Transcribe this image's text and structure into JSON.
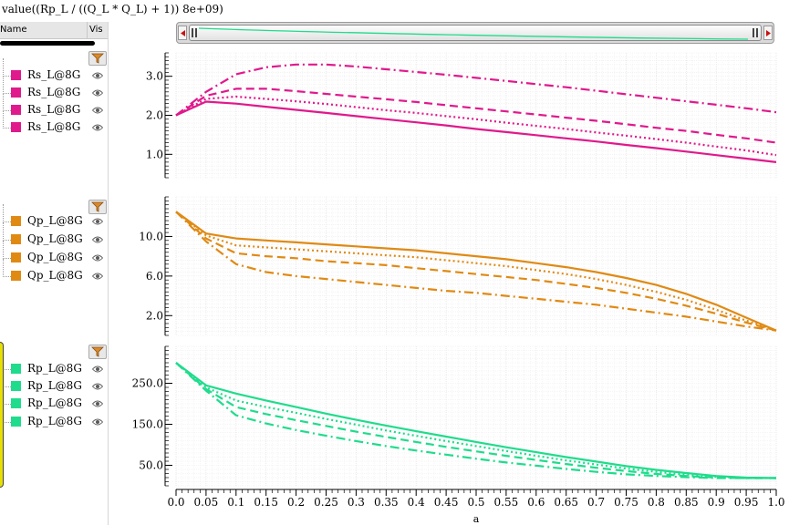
{
  "title": "value((Rp_L / ((Q_L * Q_L) + 1)) 8e+09)",
  "legend_header": {
    "name": "Name",
    "vis": "Vis"
  },
  "icons": {
    "filter": "funnel-icon",
    "visibility": "eye-icon"
  },
  "legend_groups": [
    {
      "color": "#e0198c",
      "items": [
        "Rs_L@8G",
        "Rs_L@8G",
        "Rs_L@8G",
        "Rs_L@8G"
      ]
    },
    {
      "color": "#e08a14",
      "items": [
        "Qp_L@8G",
        "Qp_L@8G",
        "Qp_L@8G",
        "Qp_L@8G"
      ]
    },
    {
      "color": "#1fdc8c",
      "items": [
        "Rp_L@8G",
        "Rp_L@8G",
        "Rp_L@8G",
        "Rp_L@8G"
      ]
    }
  ],
  "chart_data": [
    {
      "type": "line",
      "grid": true,
      "color": "#e0198c",
      "ylim": [
        0.4,
        3.6
      ],
      "yticks": [
        "1.0",
        "2.0",
        "3.0"
      ],
      "yticks_values": [
        1.0,
        2.0,
        3.0
      ],
      "x": [
        0,
        0.05,
        0.1,
        0.15,
        0.2,
        0.25,
        0.3,
        0.35,
        0.4,
        0.45,
        0.5,
        0.55,
        0.6,
        0.65,
        0.7,
        0.75,
        0.8,
        0.85,
        0.9,
        0.95,
        1.0
      ],
      "series": [
        {
          "dash": "solid",
          "values": [
            2.0,
            2.35,
            2.3,
            2.22,
            2.14,
            2.06,
            1.98,
            1.9,
            1.82,
            1.74,
            1.65,
            1.57,
            1.49,
            1.41,
            1.33,
            1.24,
            1.16,
            1.07,
            0.98,
            0.89,
            0.8
          ]
        },
        {
          "dash": "dot",
          "values": [
            2.0,
            2.42,
            2.48,
            2.42,
            2.36,
            2.29,
            2.21,
            2.13,
            2.06,
            1.98,
            1.9,
            1.81,
            1.73,
            1.65,
            1.56,
            1.48,
            1.39,
            1.3,
            1.2,
            1.1,
            0.98
          ]
        },
        {
          "dash": "dash",
          "values": [
            2.0,
            2.5,
            2.68,
            2.68,
            2.62,
            2.55,
            2.48,
            2.41,
            2.34,
            2.26,
            2.18,
            2.1,
            2.02,
            1.94,
            1.86,
            1.77,
            1.68,
            1.6,
            1.5,
            1.41,
            1.3
          ]
        },
        {
          "dash": "dashdot",
          "values": [
            2.0,
            2.6,
            3.05,
            3.23,
            3.3,
            3.3,
            3.25,
            3.18,
            3.11,
            3.04,
            2.96,
            2.88,
            2.8,
            2.72,
            2.63,
            2.54,
            2.45,
            2.36,
            2.27,
            2.18,
            2.08
          ]
        }
      ]
    },
    {
      "type": "line",
      "grid": true,
      "color": "#e08a14",
      "ylim": [
        0,
        14
      ],
      "yticks": [
        "2.0",
        "6.0",
        "10.0"
      ],
      "yticks_values": [
        2.0,
        6.0,
        10.0
      ],
      "x": [
        0,
        0.05,
        0.1,
        0.15,
        0.2,
        0.25,
        0.3,
        0.35,
        0.4,
        0.45,
        0.5,
        0.55,
        0.6,
        0.65,
        0.7,
        0.75,
        0.8,
        0.85,
        0.9,
        0.95,
        1.0
      ],
      "series": [
        {
          "dash": "solid",
          "values": [
            12.5,
            10.3,
            9.8,
            9.6,
            9.4,
            9.2,
            9.0,
            8.8,
            8.6,
            8.3,
            8.0,
            7.7,
            7.3,
            6.9,
            6.4,
            5.8,
            5.1,
            4.2,
            3.1,
            1.8,
            0.5
          ]
        },
        {
          "dash": "dot",
          "values": [
            12.5,
            10.1,
            9.1,
            8.9,
            8.7,
            8.5,
            8.3,
            8.1,
            7.9,
            7.6,
            7.3,
            7.0,
            6.6,
            6.2,
            5.7,
            5.1,
            4.4,
            3.6,
            2.6,
            1.5,
            0.5
          ]
        },
        {
          "dash": "dash",
          "values": [
            12.5,
            9.8,
            8.3,
            8.0,
            7.8,
            7.5,
            7.3,
            7.1,
            6.8,
            6.5,
            6.2,
            5.9,
            5.6,
            5.2,
            4.8,
            4.3,
            3.7,
            3.0,
            2.2,
            1.3,
            0.5
          ]
        },
        {
          "dash": "dashdot",
          "values": [
            12.5,
            9.5,
            7.2,
            6.4,
            6.0,
            5.7,
            5.4,
            5.1,
            4.8,
            4.5,
            4.3,
            4.0,
            3.7,
            3.4,
            3.1,
            2.7,
            2.3,
            1.9,
            1.4,
            0.9,
            0.5
          ]
        }
      ]
    },
    {
      "type": "line",
      "grid": true,
      "color": "#1fdc8c",
      "xlabel": "a",
      "ylim": [
        0,
        340
      ],
      "yticks": [
        "50.0",
        "150.0",
        "250.0"
      ],
      "yticks_values": [
        50,
        150,
        250
      ],
      "xlim": [
        0,
        1.0
      ],
      "xticks": [
        "0.0",
        "0.05",
        "0.1",
        "0.15",
        "0.2",
        "0.25",
        "0.3",
        "0.35",
        "0.4",
        "0.45",
        "0.5",
        "0.55",
        "0.6",
        "0.65",
        "0.7",
        "0.75",
        "0.8",
        "0.85",
        "0.9",
        "0.95",
        "1.0"
      ],
      "x": [
        0,
        0.05,
        0.1,
        0.15,
        0.2,
        0.25,
        0.3,
        0.35,
        0.4,
        0.45,
        0.5,
        0.55,
        0.6,
        0.65,
        0.7,
        0.75,
        0.8,
        0.85,
        0.9,
        0.95,
        1.0
      ],
      "series": [
        {
          "dash": "solid",
          "values": [
            300,
            245,
            225,
            208,
            192,
            176,
            161,
            147,
            133,
            120,
            107,
            94,
            82,
            70,
            59,
            48,
            39,
            31,
            24,
            20,
            19
          ]
        },
        {
          "dash": "dot",
          "values": [
            300,
            240,
            208,
            192,
            178,
            163,
            149,
            135,
            122,
            109,
            97,
            85,
            73,
            62,
            52,
            42,
            34,
            27,
            22,
            19,
            19
          ]
        },
        {
          "dash": "dash",
          "values": [
            300,
            236,
            192,
            175,
            160,
            146,
            132,
            119,
            107,
            95,
            84,
            73,
            63,
            53,
            44,
            36,
            29,
            24,
            20,
            19,
            19
          ]
        },
        {
          "dash": "dashdot",
          "values": [
            300,
            232,
            172,
            152,
            136,
            122,
            109,
            97,
            86,
            76,
            66,
            57,
            49,
            41,
            34,
            28,
            24,
            21,
            19,
            19,
            19
          ]
        }
      ]
    }
  ]
}
